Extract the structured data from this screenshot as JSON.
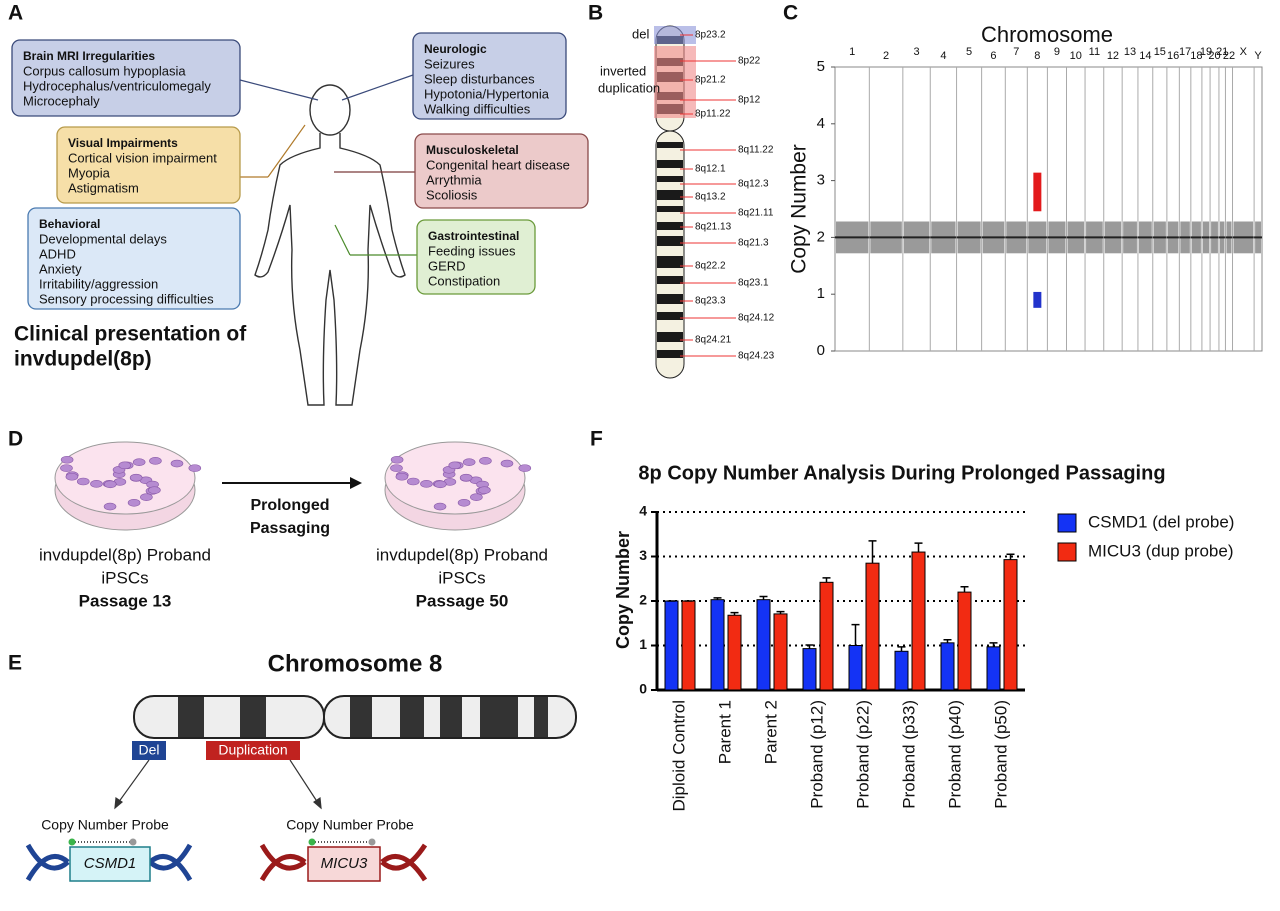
{
  "panels": {
    "a": {
      "letter": "A",
      "boxes": [
        {
          "title": "Brain MRI Irregularities",
          "items": [
            "Corpus callosum hypoplasia",
            "Hydrocephalus/ventriculomegaly",
            "Microcephaly"
          ]
        },
        {
          "title": "Neurologic",
          "items": [
            "Seizures",
            "Sleep disturbances",
            "Hypotonia/Hypertonia",
            "Walking difficulties"
          ]
        },
        {
          "title": "Visual Impairments",
          "items": [
            "Cortical vision impairment",
            "Myopia",
            "Astigmatism"
          ]
        },
        {
          "title": "Musculoskeletal",
          "items": [
            "Congenital heart disease",
            "Arrythmia",
            "Scoliosis"
          ]
        },
        {
          "title": "Behavioral",
          "items": [
            "Developmental delays",
            "ADHD",
            "Anxiety",
            "Irritability/aggression",
            "Sensory processing difficulties"
          ]
        },
        {
          "title": "Gastrointestinal",
          "items": [
            "Feeding issues",
            "GERD",
            "Constipation"
          ]
        }
      ],
      "caption": [
        "Clinical presentation of",
        "invdupdel(8p)"
      ]
    },
    "b": {
      "letter": "B",
      "del": "del",
      "dup": [
        "inverted",
        "duplication"
      ],
      "bands": [
        "8p23.2",
        "8p22",
        "8p21.2",
        "8p12",
        "8p11.22",
        "8q11.22",
        "8q12.1",
        "8q12.3",
        "8q13.2",
        "8q21.11",
        "8q21.13",
        "8q21.3",
        "8q22.2",
        "8q23.1",
        "8q23.3",
        "8q24.12",
        "8q24.21",
        "8q24.23"
      ]
    },
    "c": {
      "letter": "C"
    },
    "d": {
      "letter": "D",
      "arrow": [
        "Prolonged",
        "Passaging"
      ],
      "left": [
        "invdupdel(8p) Proband",
        "iPSCs",
        "Passage 13"
      ],
      "right": [
        "invdupdel(8p) Proband",
        "iPSCs",
        "Passage 50"
      ]
    },
    "e": {
      "letter": "E",
      "title": "Chromosome 8",
      "del": "Del",
      "dup": "Duplication",
      "probe_left": "Copy Number Probe",
      "probe_right": "Copy Number Probe",
      "gene_left": "CSMD1",
      "gene_right": "MICU3"
    },
    "f": {
      "letter": "F"
    }
  },
  "chart_data": [
    {
      "type": "scatter",
      "title": "Chromosome",
      "y_label": "Copy Number",
      "categories": [
        "1",
        "2",
        "3",
        "4",
        "5",
        "6",
        "7",
        "8",
        "9",
        "10",
        "11",
        "12",
        "13",
        "14",
        "15",
        "16",
        "17",
        "18",
        "19",
        "20",
        "21",
        "22",
        "X",
        "Y"
      ],
      "series": [
        {
          "color": "#222222",
          "values": [
            2,
            2,
            2,
            2,
            2,
            2,
            2,
            2,
            2,
            2,
            2,
            2,
            2,
            2,
            2,
            2,
            2,
            2,
            2,
            2,
            2,
            2,
            2,
            2
          ]
        },
        {
          "color": "#e31a1c",
          "values": [
            null,
            null,
            null,
            null,
            null,
            null,
            null,
            2.8,
            null,
            null,
            null,
            null,
            null,
            null,
            null,
            null,
            null,
            null,
            null,
            null,
            null,
            null,
            null,
            null
          ]
        },
        {
          "color": "#2233cc",
          "values": [
            null,
            null,
            null,
            null,
            null,
            null,
            null,
            0.9,
            null,
            null,
            null,
            null,
            null,
            null,
            null,
            null,
            null,
            null,
            null,
            null,
            null,
            null,
            null,
            null
          ]
        }
      ],
      "ylim": [
        0,
        5
      ],
      "yticks": [
        0,
        1,
        2,
        3,
        4,
        5
      ]
    },
    {
      "type": "bar",
      "title": "8p Copy Number Analysis During Prolonged Passaging",
      "y_label": "Copy Number",
      "categories": [
        "Diploid Control",
        "Parent 1",
        "Parent 2",
        "Proband (p12)",
        "Proband (p22)",
        "Proband (p33)",
        "Proband (p40)",
        "Proband (p50)"
      ],
      "series": [
        {
          "name": "CSMD1 (del probe)",
          "color": "#1433f5",
          "values": [
            2.0,
            2.03,
            2.03,
            0.93,
            1.0,
            0.87,
            1.06,
            0.97
          ],
          "errors": [
            0,
            0.04,
            0.07,
            0.08,
            0.47,
            0.1,
            0.07,
            0.09
          ]
        },
        {
          "name": "MICU3 (dup probe)",
          "color": "#f22b12",
          "values": [
            2.0,
            1.68,
            1.71,
            2.42,
            2.85,
            3.1,
            2.2,
            2.93
          ],
          "errors": [
            0,
            0.06,
            0.05,
            0.1,
            0.5,
            0.2,
            0.12,
            0.12
          ]
        }
      ],
      "ylim": [
        0,
        4
      ],
      "yticks": [
        0,
        1,
        2,
        3,
        4
      ],
      "grid": true
    }
  ]
}
